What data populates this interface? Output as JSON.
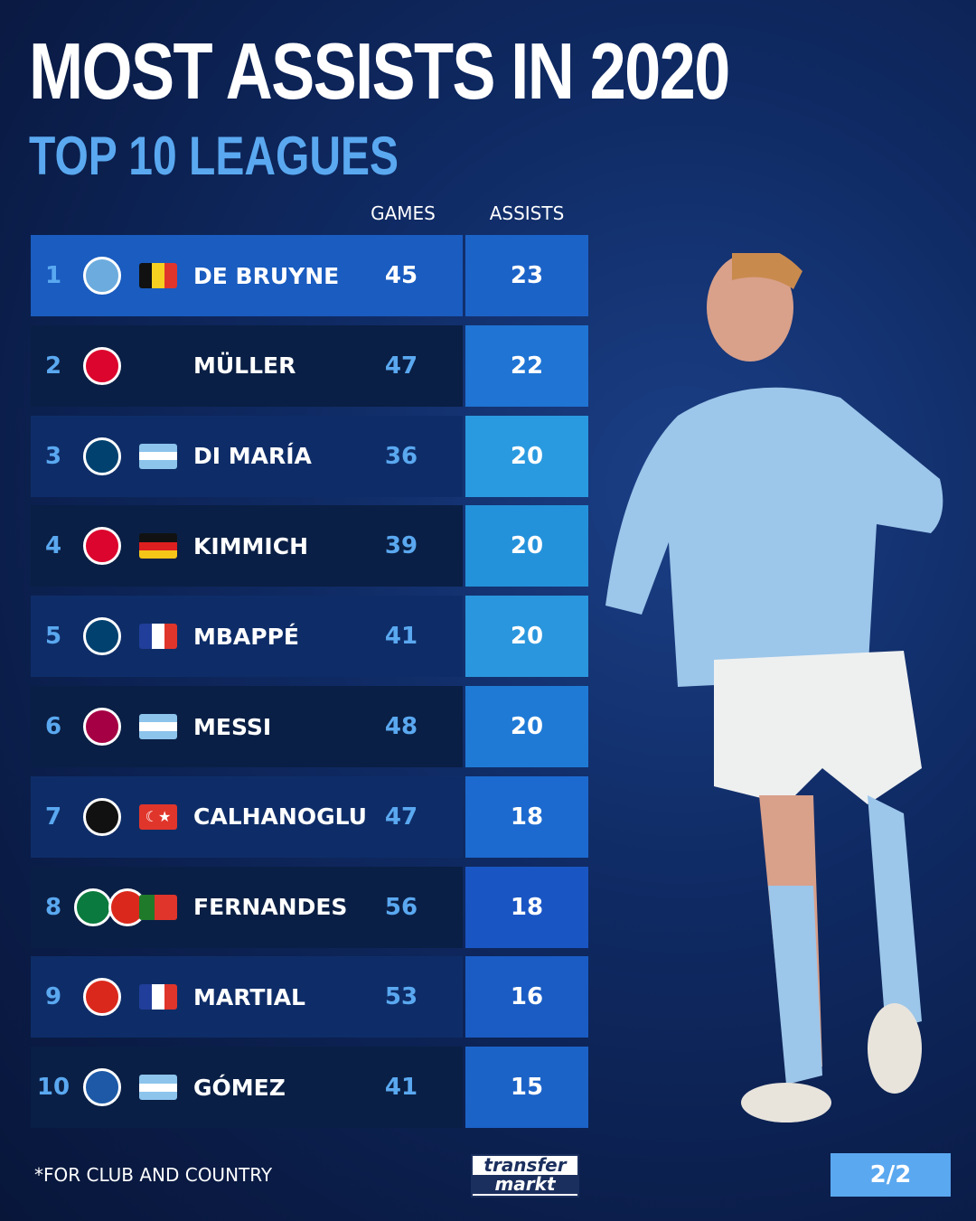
{
  "header": {
    "title": "MOST ASSISTS IN 2020",
    "subtitle": "TOP 10 LEAGUES"
  },
  "columns": {
    "games": "GAMES",
    "assists": "ASSISTS"
  },
  "chart_data": {
    "type": "table",
    "columns": [
      "GAMES",
      "ASSISTS"
    ],
    "rows": [
      {
        "rank": "1",
        "name": "DE BRUYNE",
        "games": 45,
        "assists": 23,
        "clubs": [
          "manchester-city"
        ],
        "flag": "belgium"
      },
      {
        "rank": "2",
        "name": "MÜLLER",
        "games": 47,
        "assists": 22,
        "clubs": [
          "bayern-munich"
        ],
        "flag": ""
      },
      {
        "rank": "3",
        "name": "DI MARÍA",
        "games": 36,
        "assists": 20,
        "clubs": [
          "psg"
        ],
        "flag": "argentina"
      },
      {
        "rank": "4",
        "name": "KIMMICH",
        "games": 39,
        "assists": 20,
        "clubs": [
          "bayern-munich"
        ],
        "flag": "germany"
      },
      {
        "rank": "5",
        "name": "MBAPPÉ",
        "games": 41,
        "assists": 20,
        "clubs": [
          "psg"
        ],
        "flag": "france"
      },
      {
        "rank": "6",
        "name": "MESSI",
        "games": 48,
        "assists": 20,
        "clubs": [
          "barcelona"
        ],
        "flag": "argentina"
      },
      {
        "rank": "7",
        "name": "CALHANOGLU",
        "games": 47,
        "assists": 18,
        "clubs": [
          "ac-milan"
        ],
        "flag": "turkey"
      },
      {
        "rank": "8",
        "name": "FERNANDES",
        "games": 56,
        "assists": 18,
        "clubs": [
          "sporting-cp",
          "manchester-united"
        ],
        "flag": "portugal"
      },
      {
        "rank": "9",
        "name": "MARTIAL",
        "games": 53,
        "assists": 16,
        "clubs": [
          "manchester-united"
        ],
        "flag": "france"
      },
      {
        "rank": "10",
        "name": "GÓMEZ",
        "games": 41,
        "assists": 15,
        "clubs": [
          "atalanta"
        ],
        "flag": "argentina"
      }
    ]
  },
  "footer": {
    "note": "*FOR CLUB AND COUNTRY",
    "logo": "transfermarkt",
    "page": "2/2"
  },
  "colors": {
    "accent": "#5aa8f0",
    "highlight_row": "#1a5cc0",
    "background": "#0f2a63"
  }
}
